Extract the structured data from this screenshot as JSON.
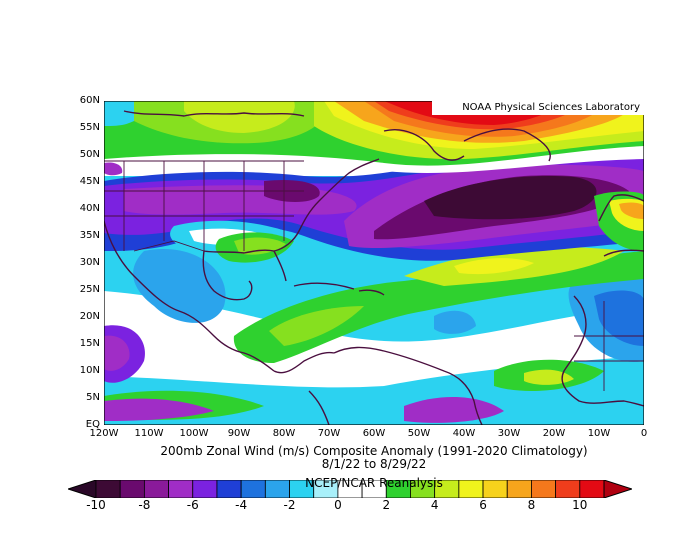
{
  "credit": "NOAA Physical Sciences Laboratory",
  "title": {
    "line1": "200mb Zonal Wind (m/s) Composite Anomaly (1991-2020 Climatology)",
    "line2": "8/1/22 to 8/29/22",
    "line3": "NCEP/NCAR Reanalysis"
  },
  "lat_labels": [
    "60N",
    "55N",
    "50N",
    "45N",
    "40N",
    "35N",
    "30N",
    "25N",
    "20N",
    "15N",
    "10N",
    "5N",
    "EQ"
  ],
  "lon_labels": [
    "120W",
    "110W",
    "100W",
    "90W",
    "80W",
    "70W",
    "60W",
    "50W",
    "40W",
    "30W",
    "20W",
    "10W",
    "0"
  ],
  "colorbar": {
    "labels": [
      "-10",
      "-8",
      "-6",
      "-4",
      "-2",
      "0",
      "2",
      "4",
      "6",
      "8",
      "10"
    ],
    "colors": [
      "#3d0a35",
      "#6a0a6e",
      "#8a1a9a",
      "#a02dc6",
      "#7b22e0",
      "#1f3fd6",
      "#1e72de",
      "#2ba4ec",
      "#2cd2f0",
      "#a8f0fa",
      "#ffffff",
      "#ffffff",
      "#2fd12f",
      "#86e01f",
      "#c6ec1c",
      "#f0f31c",
      "#f7d21c",
      "#f7a51c",
      "#f5781c",
      "#ef3d1c",
      "#e30a14"
    ],
    "low_cap": "#2a0828",
    "high_cap": "#b00010"
  },
  "palette": {
    "c_m10": "#3d0a35",
    "c_m8": "#6a0a6e",
    "c_m7": "#8a1a9a",
    "c_m6": "#a02dc6",
    "c_m5": "#7b22e0",
    "c_m4": "#1f3fd6",
    "c_m3": "#1e72de",
    "c_m2": "#2ba4ec",
    "c_m1": "#2cd2f0",
    "c_m05": "#a8f0fa",
    "c_0": "#ffffff",
    "c_p1": "#2fd12f",
    "c_p2": "#86e01f",
    "c_p3": "#c6ec1c",
    "c_p4": "#f0f31c",
    "c_p5": "#f7d21c",
    "c_p6": "#f7a51c",
    "c_p7": "#f5781c",
    "c_p8": "#ef3d1c",
    "c_p10": "#e30a14",
    "coast": "#4a0f3f"
  }
}
